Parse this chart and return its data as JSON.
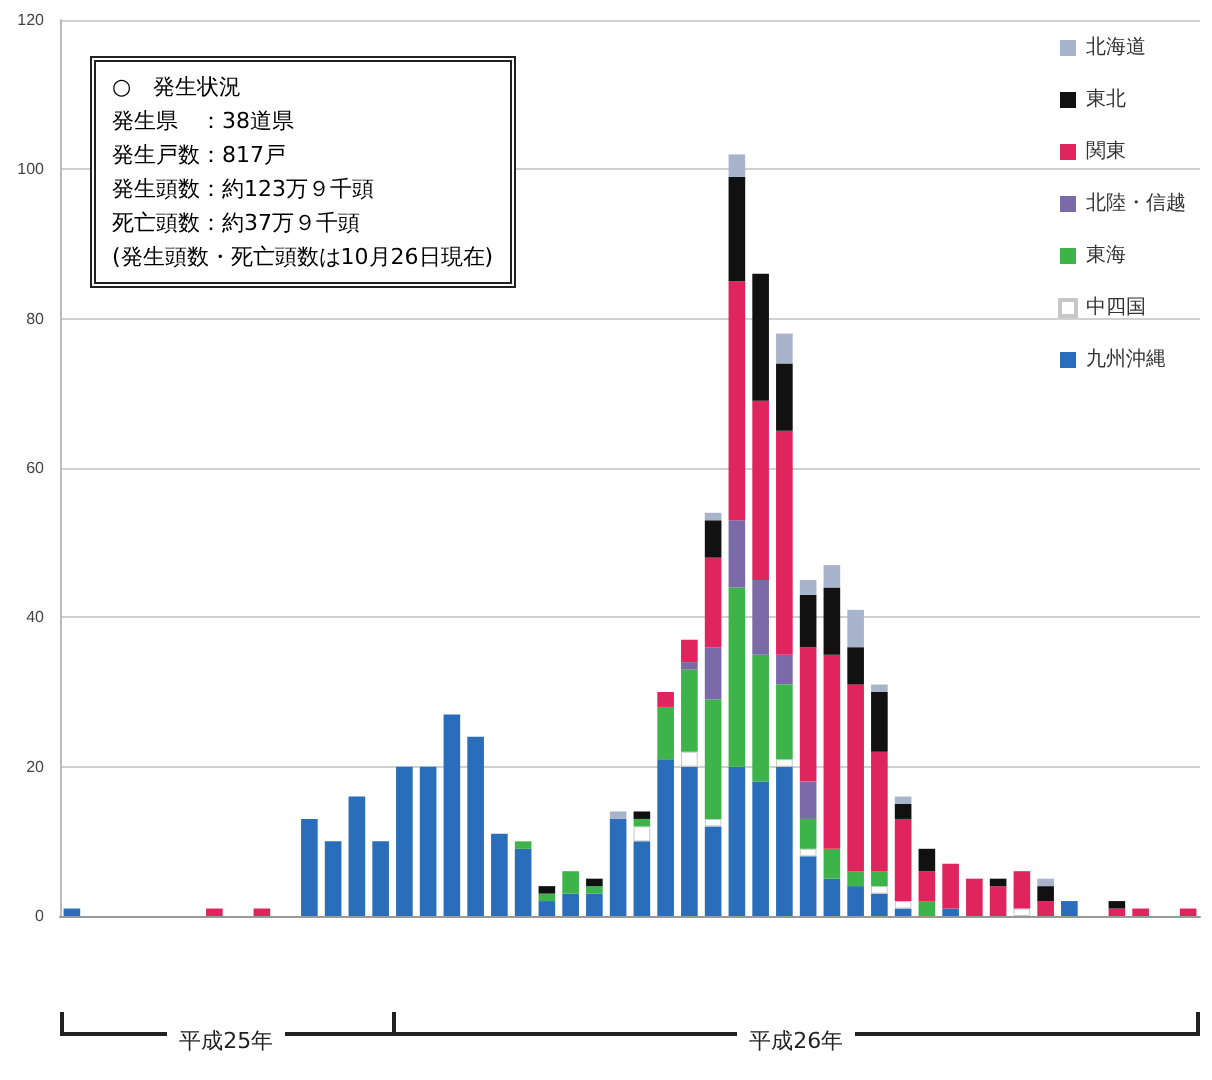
{
  "chart_data": {
    "type": "bar",
    "stacked": true,
    "categories": [
      null,
      null,
      null,
      null,
      null,
      null,
      null,
      null,
      null,
      null,
      null,
      null,
      null,
      null,
      null,
      null,
      null,
      null,
      null,
      null,
      null,
      null,
      null,
      null,
      null,
      null,
      null,
      null,
      null,
      null,
      null,
      null,
      null,
      null,
      null,
      null,
      null,
      null,
      null,
      null,
      null,
      null,
      null,
      null,
      null,
      null,
      null,
      null
    ],
    "series": [
      {
        "name": "九州沖縄",
        "color": "#2a6ebb",
        "values": [
          1,
          0,
          0,
          0,
          0,
          0,
          0,
          0,
          0,
          0,
          13,
          10,
          16,
          10,
          20,
          20,
          27,
          24,
          11,
          9,
          2,
          3,
          3,
          13,
          10,
          21,
          20,
          12,
          20,
          18,
          20,
          8,
          5,
          4,
          3,
          1,
          0,
          1,
          0,
          0,
          0,
          0,
          2,
          0,
          0,
          0,
          0,
          0
        ]
      },
      {
        "name": "中四国",
        "color": "#ffffff",
        "values": [
          0,
          0,
          0,
          0,
          0,
          0,
          0,
          0,
          0,
          0,
          0,
          0,
          0,
          0,
          0,
          0,
          0,
          0,
          0,
          0,
          0,
          0,
          0,
          0,
          2,
          0,
          2,
          1,
          0,
          0,
          1,
          1,
          0,
          0,
          1,
          1,
          0,
          0,
          0,
          0,
          1,
          0,
          0,
          0,
          0,
          0,
          0,
          0
        ]
      },
      {
        "name": "東海",
        "color": "#3cb44a",
        "values": [
          0,
          0,
          0,
          0,
          0,
          0,
          0,
          0,
          0,
          0,
          0,
          0,
          0,
          0,
          0,
          0,
          0,
          0,
          0,
          1,
          1,
          3,
          1,
          0,
          1,
          7,
          11,
          16,
          24,
          17,
          10,
          4,
          4,
          2,
          2,
          0,
          2,
          0,
          0,
          0,
          0,
          0,
          0,
          0,
          0,
          0,
          0,
          0
        ]
      },
      {
        "name": "北陸・信越",
        "color": "#7b6aa8",
        "values": [
          0,
          0,
          0,
          0,
          0,
          0,
          0,
          0,
          0,
          0,
          0,
          0,
          0,
          0,
          0,
          0,
          0,
          0,
          0,
          0,
          0,
          0,
          0,
          0,
          0,
          0,
          1,
          7,
          9,
          10,
          4,
          5,
          0,
          0,
          0,
          0,
          0,
          0,
          0,
          0,
          0,
          0,
          0,
          0,
          0,
          0,
          0,
          0
        ]
      },
      {
        "name": "関東",
        "color": "#e0245e",
        "values": [
          0,
          0,
          0,
          0,
          0,
          0,
          1,
          0,
          1,
          0,
          0,
          0,
          0,
          0,
          0,
          0,
          0,
          0,
          0,
          0,
          0,
          0,
          0,
          0,
          0,
          2,
          3,
          12,
          32,
          24,
          30,
          18,
          26,
          25,
          16,
          11,
          4,
          6,
          5,
          4,
          5,
          2,
          0,
          0,
          1,
          1,
          0,
          1
        ]
      },
      {
        "name": "東北",
        "color": "#111111",
        "values": [
          0,
          0,
          0,
          0,
          0,
          0,
          0,
          0,
          0,
          0,
          0,
          0,
          0,
          0,
          0,
          0,
          0,
          0,
          0,
          0,
          1,
          0,
          1,
          0,
          1,
          0,
          0,
          5,
          14,
          17,
          9,
          7,
          9,
          5,
          8,
          2,
          3,
          0,
          0,
          1,
          0,
          2,
          0,
          0,
          1,
          0,
          0,
          0
        ]
      },
      {
        "name": "北海道",
        "color": "#a8b4cc",
        "values": [
          0,
          0,
          0,
          0,
          0,
          0,
          0,
          0,
          0,
          0,
          0,
          0,
          0,
          0,
          0,
          0,
          0,
          0,
          0,
          0,
          0,
          0,
          0,
          1,
          0,
          0,
          0,
          1,
          3,
          0,
          4,
          2,
          3,
          5,
          1,
          1,
          0,
          0,
          0,
          0,
          0,
          1,
          0,
          0,
          0,
          0,
          0,
          0
        ]
      }
    ],
    "ylim": [
      0,
      120
    ],
    "yticks": [
      0,
      20,
      40,
      60,
      80,
      100,
      120
    ],
    "grid": "y",
    "legend": "top right",
    "annotations": [
      "○　発生状況",
      "発生県　：38道県",
      "発生戸数：817戸",
      "発生頭数：約123万９千頭",
      "死亡頭数：約37万９千頭",
      "(発生頭数・死亡頭数は10月26日現在)",
      "平成25年",
      "平成26年"
    ]
  }
}
